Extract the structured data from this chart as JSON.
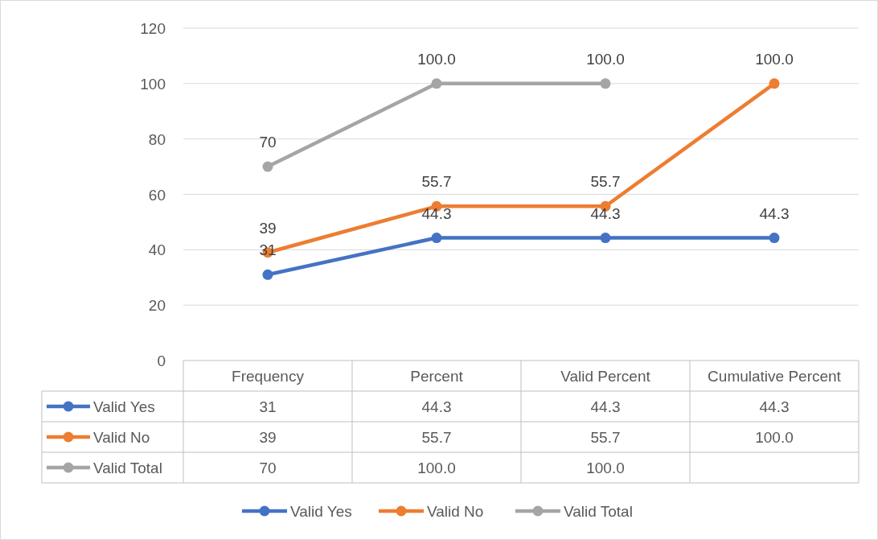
{
  "chart_data": {
    "type": "line",
    "categories": [
      "Frequency",
      "Percent",
      "Valid Percent",
      "Cumulative Percent"
    ],
    "series": [
      {
        "name": "Valid Yes",
        "color": "#4472c4",
        "values": [
          31,
          44.3,
          44.3,
          44.3
        ],
        "value_labels": [
          "31",
          "44.3",
          "44.3",
          "44.3"
        ]
      },
      {
        "name": "Valid No",
        "color": "#ed7d31",
        "values": [
          39,
          55.7,
          55.7,
          100.0
        ],
        "value_labels": [
          "39",
          "55.7",
          "55.7",
          "100.0"
        ]
      },
      {
        "name": "Valid Total",
        "color": "#a5a5a5",
        "values": [
          70,
          100.0,
          100.0,
          null
        ],
        "value_labels": [
          "70",
          "100.0",
          "100.0",
          null
        ]
      }
    ],
    "ylim": [
      0,
      120
    ],
    "yticks": [
      0,
      20,
      40,
      60,
      80,
      100,
      120
    ],
    "grid": "y",
    "legend": "bottom",
    "marker": "circle",
    "line_style": "solid"
  }
}
